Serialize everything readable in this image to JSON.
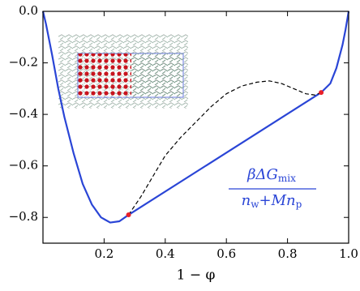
{
  "chart_data": {
    "type": "line",
    "xlabel": "1 − φ",
    "annotation": {
      "numerator": [
        "βΔG",
        "mix"
      ],
      "denominator": [
        "n",
        "w",
        "+Mn",
        "p"
      ],
      "color": "#2a45d6"
    },
    "xlim": [
      0,
      1
    ],
    "ylim": [
      -0.9,
      0
    ],
    "xticks": [
      0.2,
      0.4,
      0.6,
      0.8,
      {
        "value": 1,
        "label": "1.0"
      }
    ],
    "yticks": [
      {
        "value": 0,
        "label": "0.0"
      },
      {
        "value": -0.2,
        "label": "−0.2"
      },
      {
        "value": -0.4,
        "label": "−0.4"
      },
      {
        "value": -0.6,
        "label": "−0.6"
      },
      {
        "value": -0.8,
        "label": "−0.8"
      }
    ],
    "series": [
      {
        "color": "#2a45d6",
        "style": "solid",
        "x": [
          0,
          0.01,
          0.02,
          0.03,
          0.05,
          0.07,
          0.1,
          0.13,
          0.16,
          0.19,
          0.22,
          0.25,
          0.28,
          0.91,
          0.94,
          0.96,
          0.98,
          0.99,
          1.0
        ],
        "values": [
          0,
          -0.05,
          -0.11,
          -0.17,
          -0.3,
          -0.41,
          -0.55,
          -0.67,
          -0.75,
          -0.8,
          -0.82,
          -0.815,
          -0.79,
          -0.315,
          -0.28,
          -0.22,
          -0.13,
          -0.07,
          0
        ]
      },
      {
        "color": "#000000",
        "style": "dashed",
        "x": [
          0.28,
          0.32,
          0.36,
          0.4,
          0.45,
          0.5,
          0.55,
          0.6,
          0.65,
          0.7,
          0.74,
          0.78,
          0.82,
          0.86,
          0.89,
          0.91
        ],
        "values": [
          -0.79,
          -0.72,
          -0.64,
          -0.56,
          -0.49,
          -0.43,
          -0.37,
          -0.32,
          -0.29,
          -0.275,
          -0.27,
          -0.28,
          -0.3,
          -0.32,
          -0.325,
          -0.315
        ]
      },
      {
        "color": "#e8202a",
        "style": "points",
        "x": [
          0.28,
          0.91
        ],
        "values": [
          -0.79,
          -0.315
        ]
      }
    ]
  }
}
